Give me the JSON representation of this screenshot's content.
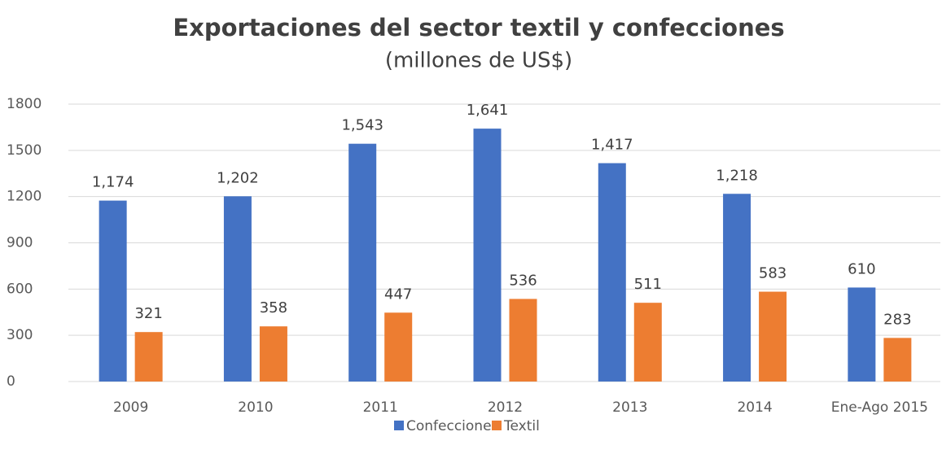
{
  "chart_data": {
    "type": "bar",
    "title": "Exportaciones del sector textil y confecciones",
    "subtitle": "(millones de US$)",
    "categories": [
      "2009",
      "2010",
      "2011",
      "2012",
      "2013",
      "2014",
      "Ene-Ago 2015"
    ],
    "series": [
      {
        "name": "Confecciones",
        "color": "#4472c4",
        "values": [
          1174,
          1202,
          1543,
          1641,
          1417,
          1218,
          610
        ],
        "value_labels": [
          "1,174",
          "1,202",
          "1,543",
          "1,641",
          "1,417",
          "1,218",
          "610"
        ]
      },
      {
        "name": "Textil",
        "color": "#ed7d31",
        "values": [
          321,
          358,
          447,
          536,
          511,
          583,
          283
        ]
      }
    ],
    "ylim": [
      0,
      1800
    ],
    "yticks": [
      0,
      300,
      600,
      900,
      1200,
      1500,
      1800
    ],
    "grid": true,
    "legend": "bottom"
  }
}
